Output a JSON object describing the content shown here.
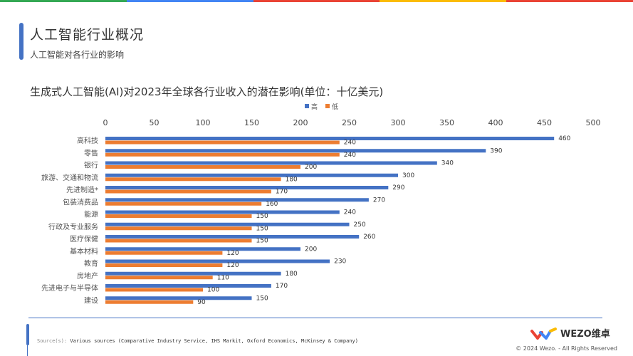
{
  "header": {
    "title": "人工智能行业概况",
    "subtitle": "人工智能对各行业的影响"
  },
  "colors": {
    "top_bar": [
      "#34a853",
      "#4285f4",
      "#ea4335",
      "#fbbc05",
      "#ea4335"
    ],
    "accent": "#4472c4"
  },
  "chart_data": {
    "type": "bar",
    "orientation": "horizontal",
    "title": "生成式人工智能(AI)对2023年全球各行业收入的潜在影响(单位：十亿美元)",
    "categories": [
      "高科技",
      "零售",
      "银行",
      "旅游、交通和物流",
      "先进制造*",
      "包装消费品",
      "能源",
      "行政及专业服务",
      "医疗保健",
      "基本材料",
      "教育",
      "房地产",
      "先进电子与半导体",
      "建设"
    ],
    "series": [
      {
        "name": "高",
        "color": "#4472c4",
        "values": [
          460,
          390,
          340,
          300,
          290,
          270,
          240,
          250,
          260,
          200,
          230,
          180,
          170,
          150
        ]
      },
      {
        "name": "低",
        "color": "#ed7d31",
        "values": [
          240,
          240,
          200,
          180,
          170,
          160,
          150,
          150,
          150,
          120,
          120,
          110,
          100,
          90
        ]
      }
    ],
    "xlim": [
      0,
      500
    ],
    "xticks": [
      0,
      50,
      100,
      150,
      200,
      250,
      300,
      350,
      400,
      450,
      500
    ],
    "legend": "top-center",
    "axis_position": "top",
    "grid": false
  },
  "footer": {
    "source_label": "Source(s):",
    "source": "Various sources (Comparative Industry Service, IHS Markit, Oxford Economics, McKinsey & Company)",
    "brand": "WEZO维卓",
    "copyright": "© 2024 Wezo. - All Rights Reserved"
  }
}
